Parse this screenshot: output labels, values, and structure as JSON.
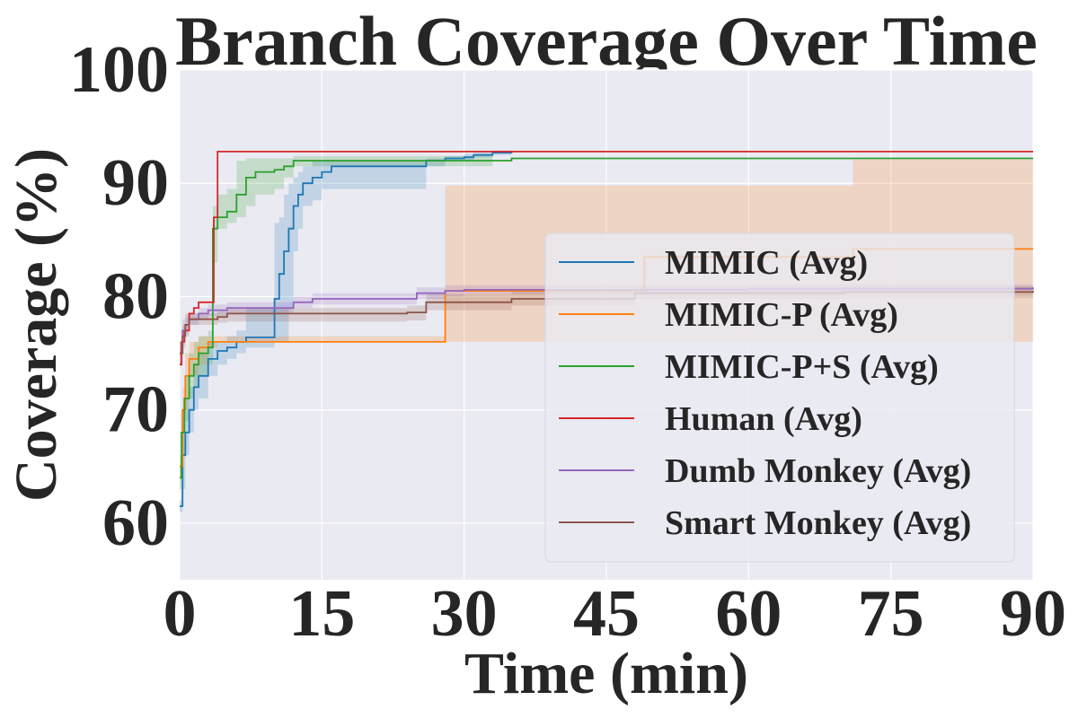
{
  "chart_data": {
    "type": "line",
    "title": "Branch Coverage Over Time",
    "xlabel": "Time (min)",
    "ylabel": "Coverage (%)",
    "xlim": [
      0,
      90
    ],
    "ylim": [
      55,
      100
    ],
    "xticks": [
      "0",
      "15",
      "30",
      "45",
      "60",
      "75",
      "90"
    ],
    "yticks": [
      "60",
      "70",
      "80",
      "90",
      "100"
    ],
    "grid": true,
    "legend_position": "center-right",
    "background_color": "#eaeaf2",
    "series": [
      {
        "name": "MIMIC (Avg)",
        "color": "#1f77b4",
        "x": [
          0,
          0.3,
          0.6,
          1,
          1.5,
          2,
          3,
          4,
          5,
          6,
          7,
          10,
          10.5,
          11,
          11.5,
          12,
          12.5,
          13,
          14,
          15,
          16,
          17,
          19,
          21,
          24,
          26,
          28,
          30,
          31,
          33,
          35
        ],
        "y": [
          61.5,
          66,
          68,
          70,
          72,
          73,
          74.5,
          75.2,
          75.5,
          76,
          76.4,
          79.8,
          82,
          84,
          86,
          88,
          89,
          90,
          90.5,
          91,
          91.5,
          91.5,
          91.5,
          91.5,
          91.5,
          92,
          92.2,
          92.3,
          92.5,
          92.7,
          92.8
        ],
        "band_low": [
          61,
          63,
          66,
          68,
          70,
          71,
          73,
          74,
          74.5,
          75,
          75.5,
          76,
          76,
          76,
          79,
          84,
          86,
          88,
          88.5,
          89.5,
          89.5,
          89.5,
          89.5,
          89.5,
          89.5,
          91.5,
          92,
          92,
          92.3,
          92.5,
          92.6
        ],
        "band_high": [
          62,
          69,
          71,
          72,
          74,
          75,
          76,
          76,
          76.5,
          77,
          79,
          86.5,
          87,
          89,
          90,
          90.5,
          91,
          91.5,
          92,
          92,
          92,
          92,
          92,
          92,
          92,
          92.2,
          92.4,
          92.6,
          92.7,
          92.9,
          93
        ]
      },
      {
        "name": "MIMIC-P (Avg)",
        "color": "#ff7f0e",
        "x": [
          0,
          0.3,
          0.6,
          1,
          2,
          3,
          4,
          27.5,
          28,
          48,
          49,
          70,
          71,
          90
        ],
        "y": [
          65,
          70,
          73,
          74.5,
          75.5,
          76,
          76,
          76,
          80.5,
          80.5,
          83.5,
          83.5,
          84.2,
          84.2
        ],
        "band_low": [
          64,
          68,
          71,
          73,
          74,
          75.5,
          76,
          76,
          76,
          76,
          76,
          76,
          76,
          76
        ],
        "band_high": [
          66,
          72,
          75,
          76,
          76.5,
          76.5,
          76.5,
          76.5,
          89.8,
          89.8,
          89.8,
          89.8,
          92.1,
          92.1
        ]
      },
      {
        "name": "MIMIC-P+S (Avg)",
        "color": "#2ca02c",
        "x": [
          0,
          0.2,
          0.5,
          1,
          1.5,
          2,
          3,
          3.5,
          4,
          5,
          6,
          7,
          8,
          10,
          11,
          12,
          15,
          20,
          25,
          30,
          35,
          90
        ],
        "y": [
          64,
          68,
          71,
          73,
          74,
          75,
          75.5,
          86,
          87,
          87.5,
          89,
          90.5,
          91,
          91.2,
          91.5,
          92,
          92,
          92,
          92,
          92,
          92.2,
          92.2
        ],
        "band_low": [
          63,
          66,
          69,
          71,
          72,
          73,
          74,
          83,
          86,
          86.5,
          87,
          88,
          89,
          89.5,
          90.5,
          91.5,
          91.5,
          91.5,
          91.5,
          91.5,
          92,
          92.2
        ],
        "band_high": [
          65,
          70,
          73,
          75,
          76,
          76.5,
          77,
          88,
          89,
          89.5,
          92,
          92.2,
          92.2,
          92.2,
          92.2,
          92.4,
          92.4,
          92.4,
          92.4,
          92.4,
          92.4,
          92.4
        ],
        "band_end": 33
      },
      {
        "name": "Human (Avg)",
        "color": "#d62728",
        "x": [
          0,
          0.2,
          0.5,
          1,
          1.5,
          2,
          3,
          3.6,
          4,
          90
        ],
        "y": [
          74,
          76,
          77,
          78.5,
          79,
          79.5,
          79.5,
          87,
          92.8,
          92.8
        ]
      },
      {
        "name": "Dumb Monkey (Avg)",
        "color": "#9467bd",
        "x": [
          0,
          0.3,
          0.6,
          1,
          2,
          3,
          5,
          8,
          10,
          12,
          14,
          17,
          20,
          25,
          28,
          30,
          35,
          40,
          45,
          50,
          60,
          70,
          80,
          90
        ],
        "y": [
          75,
          77,
          77.5,
          78,
          78.5,
          78.8,
          79,
          79,
          79,
          79.5,
          79.8,
          79.8,
          79.8,
          80.3,
          80.5,
          80.6,
          80.6,
          80.6,
          80.6,
          80.6,
          80.7,
          80.7,
          80.7,
          80.8
        ],
        "band_low": [
          74,
          76,
          77,
          77.5,
          78,
          78.3,
          78.5,
          78.5,
          78.5,
          79,
          79.3,
          79.3,
          79.3,
          79.8,
          80,
          80.2,
          80.2,
          80.2,
          80.2,
          80.2,
          80.3,
          80.3,
          80.3,
          80.4
        ],
        "band_high": [
          76,
          78,
          78.2,
          78.5,
          79,
          79.3,
          79.5,
          79.5,
          79.5,
          80,
          80.3,
          80.3,
          80.3,
          80.8,
          81,
          81,
          81,
          81,
          81,
          81,
          81.1,
          81.1,
          81.1,
          81.2
        ]
      },
      {
        "name": "Smart Monkey (Avg)",
        "color": "#8c564b",
        "x": [
          0,
          0.3,
          0.6,
          1,
          2,
          3,
          4,
          5,
          8,
          12,
          15,
          20,
          24,
          26,
          30,
          35,
          40,
          45,
          48,
          50,
          60,
          70,
          80,
          90
        ],
        "y": [
          75,
          76.5,
          77.5,
          78,
          78,
          78,
          78.2,
          78.5,
          78.5,
          78.5,
          78.5,
          78.5,
          78.6,
          79.5,
          79.5,
          79.8,
          79.8,
          79.8,
          80.3,
          80.3,
          80.3,
          80.4,
          80.4,
          80.5
        ],
        "band_low": [
          74,
          75.5,
          76.5,
          77.5,
          77.5,
          77.5,
          77.7,
          77.8,
          77.8,
          77.8,
          77.8,
          77.8,
          77.9,
          78.8,
          78.8,
          79.2,
          79.2,
          79.2,
          79.8,
          79.8,
          79.8,
          79.9,
          79.9,
          80
        ],
        "band_high": [
          76,
          77.5,
          78.5,
          78.5,
          78.5,
          78.5,
          78.7,
          79,
          79,
          79,
          79,
          79,
          79.2,
          80.2,
          80.2,
          80.4,
          80.4,
          80.4,
          80.8,
          80.8,
          80.8,
          80.9,
          80.9,
          81
        ]
      }
    ]
  }
}
